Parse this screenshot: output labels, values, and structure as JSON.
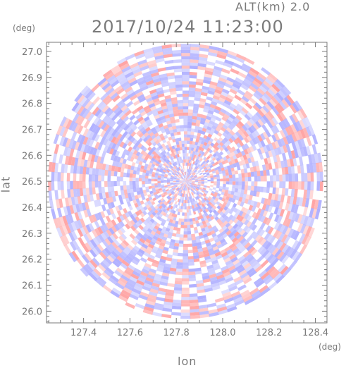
{
  "header": {
    "altitude_label": "ALT(km)  2.0",
    "timestamp": "2017/10/24 11:23:00"
  },
  "chart_data": {
    "type": "heatmap",
    "xlabel": "lon",
    "ylabel": "lat",
    "x_unit": "(deg)",
    "y_unit": "(deg)",
    "xlim": [
      127.24,
      128.45
    ],
    "ylim": [
      25.955,
      27.035
    ],
    "x_ticks": [
      127.4,
      127.6,
      127.8,
      128.0,
      128.2,
      128.4
    ],
    "x_tick_labels": [
      "127.4",
      "127.6",
      "127.8",
      "128.0",
      "128.2",
      "128.4"
    ],
    "y_ticks": [
      26.0,
      26.1,
      26.2,
      26.3,
      26.4,
      26.5,
      26.6,
      26.7,
      26.8,
      26.9,
      27.0
    ],
    "y_tick_labels": [
      "26.0",
      "26.1",
      "26.2",
      "26.3",
      "26.4",
      "26.5",
      "26.6",
      "26.7",
      "26.8",
      "26.9",
      "27.0"
    ],
    "radar_center": {
      "lon": 127.84,
      "lat": 26.5
    },
    "radar_range_deg_lat": 0.53,
    "colors": {
      "positive": "#ff9a9a",
      "negative": "#a6a6ff",
      "neutral": "#ffffff"
    }
  }
}
